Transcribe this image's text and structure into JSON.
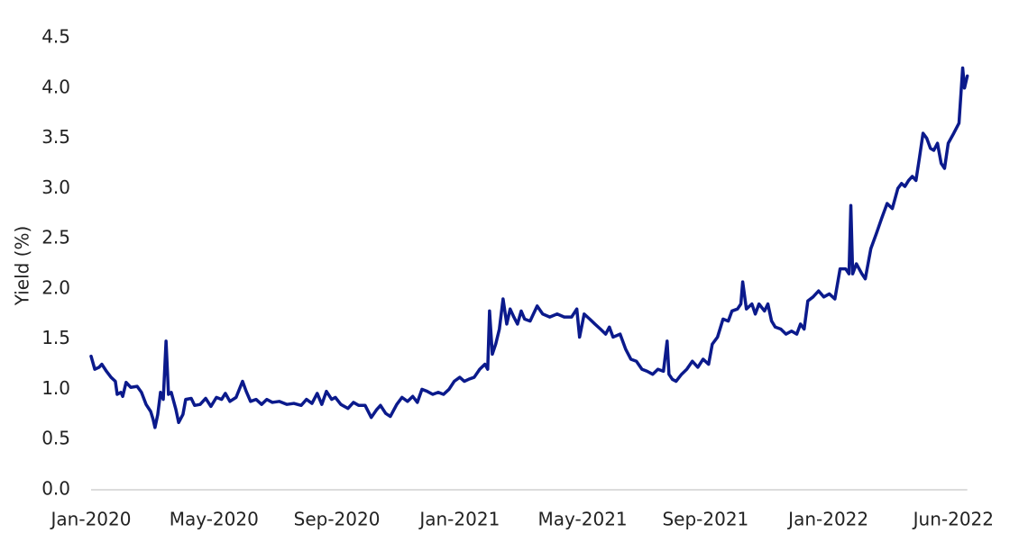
{
  "chart_data": {
    "type": "line",
    "ylabel": "Yield (%)",
    "xlim": [
      0,
      29
    ],
    "ylim": [
      0,
      4.5
    ],
    "xticks": [
      {
        "value": 0,
        "label": "Jan-2020"
      },
      {
        "value": 4,
        "label": "May-2020"
      },
      {
        "value": 8,
        "label": "Sep-2020"
      },
      {
        "value": 12,
        "label": "Jan-2021"
      },
      {
        "value": 16,
        "label": "May-2021"
      },
      {
        "value": 20,
        "label": "Sep-2021"
      },
      {
        "value": 24,
        "label": "Jan-2022"
      },
      {
        "value": 29,
        "label": "Jun-2022"
      }
    ],
    "yticks": [
      {
        "value": 0,
        "label": "0.0"
      },
      0.5,
      {
        "value": 1,
        "label": "1.0"
      },
      1.5,
      {
        "value": 2,
        "label": "2.0"
      },
      2.5,
      {
        "value": 3,
        "label": "3.0"
      },
      3.5,
      {
        "value": 4,
        "label": "4.0"
      },
      4.5
    ],
    "grid": false,
    "x": [
      0,
      0.12,
      0.26,
      0.35,
      0.5,
      0.65,
      0.79,
      0.85,
      0.97,
      1.03,
      1.14,
      1.29,
      1.5,
      1.64,
      1.79,
      1.94,
      2.02,
      2.08,
      2.17,
      2.26,
      2.35,
      2.44,
      2.52,
      2.61,
      2.76,
      2.85,
      2.99,
      3.08,
      3.26,
      3.37,
      3.55,
      3.73,
      3.9,
      4.08,
      4.25,
      4.37,
      4.52,
      4.72,
      4.93,
      5.05,
      5.19,
      5.37,
      5.55,
      5.72,
      5.9,
      6.13,
      6.37,
      6.6,
      6.84,
      7.01,
      7.19,
      7.36,
      7.51,
      7.66,
      7.83,
      7.95,
      8.13,
      8.36,
      8.54,
      8.71,
      8.92,
      9.12,
      9.3,
      9.42,
      9.59,
      9.74,
      9.95,
      10.12,
      10.3,
      10.47,
      10.62,
      10.77,
      10.94,
      11.12,
      11.3,
      11.47,
      11.65,
      11.82,
      12.0,
      12.15,
      12.29,
      12.47,
      12.65,
      12.82,
      12.91,
      12.97,
      13.06,
      13.17,
      13.29,
      13.41,
      13.53,
      13.64,
      13.76,
      13.88,
      14.0,
      14.11,
      14.29,
      14.52,
      14.7,
      14.93,
      15.17,
      15.4,
      15.64,
      15.81,
      15.9,
      16.05,
      16.23,
      16.4,
      16.58,
      16.75,
      16.87,
      16.99,
      17.22,
      17.4,
      17.57,
      17.75,
      17.93,
      18.1,
      18.28,
      18.45,
      18.63,
      18.75,
      18.81,
      18.92,
      19.04,
      19.22,
      19.39,
      19.57,
      19.75,
      19.92,
      20.1,
      20.22,
      20.39,
      20.57,
      20.74,
      20.86,
      21.04,
      21.15,
      21.21,
      21.33,
      21.51,
      21.62,
      21.74,
      21.92,
      22.03,
      22.15,
      22.27,
      22.45,
      22.62,
      22.8,
      22.97,
      23.09,
      23.21,
      23.33,
      23.5,
      23.68,
      23.85,
      24.03,
      24.21,
      24.38,
      24.56,
      24.67,
      24.73,
      24.79,
      24.91,
      25.09,
      25.2,
      25.38,
      25.56,
      25.73,
      25.91,
      26.08,
      26.26,
      26.38,
      26.49,
      26.61,
      26.73,
      26.85,
      26.96,
      27.08,
      27.2,
      27.32,
      27.43,
      27.55,
      27.67,
      27.78,
      27.9,
      28.08,
      28.25,
      28.37,
      28.43,
      28.52
    ],
    "series": [
      {
        "color": "#0b1a8c",
        "values": [
          1.33,
          1.2,
          1.22,
          1.25,
          1.18,
          1.12,
          1.08,
          0.95,
          0.97,
          0.93,
          1.07,
          1.02,
          1.03,
          0.97,
          0.85,
          0.78,
          0.7,
          0.62,
          0.75,
          0.97,
          0.9,
          1.48,
          0.95,
          0.97,
          0.8,
          0.67,
          0.75,
          0.9,
          0.91,
          0.84,
          0.85,
          0.91,
          0.83,
          0.92,
          0.9,
          0.96,
          0.88,
          0.92,
          1.08,
          0.98,
          0.88,
          0.9,
          0.85,
          0.9,
          0.87,
          0.88,
          0.85,
          0.86,
          0.84,
          0.9,
          0.86,
          0.96,
          0.85,
          0.98,
          0.9,
          0.92,
          0.85,
          0.81,
          0.87,
          0.84,
          0.84,
          0.72,
          0.8,
          0.84,
          0.76,
          0.73,
          0.85,
          0.92,
          0.88,
          0.93,
          0.87,
          1.0,
          0.98,
          0.95,
          0.97,
          0.95,
          1.0,
          1.08,
          1.12,
          1.08,
          1.1,
          1.12,
          1.2,
          1.25,
          1.2,
          1.78,
          1.35,
          1.45,
          1.6,
          1.9,
          1.65,
          1.8,
          1.72,
          1.65,
          1.78,
          1.7,
          1.68,
          1.83,
          1.75,
          1.72,
          1.75,
          1.72,
          1.72,
          1.8,
          1.52,
          1.75,
          1.7,
          1.65,
          1.6,
          1.55,
          1.62,
          1.52,
          1.55,
          1.4,
          1.3,
          1.28,
          1.2,
          1.18,
          1.15,
          1.2,
          1.18,
          1.48,
          1.15,
          1.1,
          1.08,
          1.15,
          1.2,
          1.28,
          1.22,
          1.3,
          1.25,
          1.45,
          1.52,
          1.7,
          1.68,
          1.78,
          1.8,
          1.85,
          2.07,
          1.8,
          1.85,
          1.75,
          1.85,
          1.78,
          1.85,
          1.68,
          1.62,
          1.6,
          1.55,
          1.58,
          1.55,
          1.65,
          1.6,
          1.88,
          1.92,
          1.98,
          1.92,
          1.95,
          1.9,
          2.2,
          2.2,
          2.15,
          2.83,
          2.15,
          2.25,
          2.15,
          2.1,
          2.4,
          2.55,
          2.7,
          2.85,
          2.8,
          3.0,
          3.05,
          3.02,
          3.08,
          3.12,
          3.08,
          3.3,
          3.55,
          3.5,
          3.4,
          3.38,
          3.45,
          3.25,
          3.2,
          3.45,
          3.55,
          3.65,
          4.2,
          4.0,
          4.12
        ]
      }
    ]
  }
}
